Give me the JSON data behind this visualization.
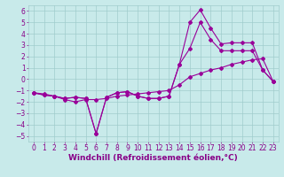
{
  "x": [
    0,
    1,
    2,
    3,
    4,
    5,
    6,
    7,
    8,
    9,
    10,
    11,
    12,
    13,
    14,
    15,
    16,
    17,
    18,
    19,
    20,
    21,
    22,
    23
  ],
  "line1": [
    -1.2,
    -1.4,
    -1.5,
    -1.7,
    -1.6,
    -1.7,
    -4.8,
    -1.6,
    -1.2,
    -1.1,
    -1.5,
    -1.7,
    -1.7,
    -1.5,
    1.3,
    5.0,
    6.1,
    4.5,
    3.1,
    3.2,
    3.2,
    3.2,
    0.8,
    -0.2
  ],
  "line2": [
    -1.2,
    -1.4,
    -1.5,
    -1.7,
    -1.6,
    -1.7,
    -4.8,
    -1.6,
    -1.2,
    -1.1,
    -1.5,
    -1.7,
    -1.7,
    -1.5,
    1.3,
    2.7,
    5.0,
    3.5,
    2.5,
    2.5,
    2.5,
    2.5,
    0.8,
    -0.2
  ],
  "line3": [
    -1.2,
    -1.3,
    -1.5,
    -1.8,
    -2.0,
    -1.8,
    -1.8,
    -1.7,
    -1.5,
    -1.4,
    -1.3,
    -1.2,
    -1.1,
    -1.0,
    -0.5,
    0.2,
    0.5,
    0.8,
    1.0,
    1.3,
    1.5,
    1.7,
    1.8,
    -0.2
  ],
  "color": "#990099",
  "bg_color": "#c8eaea",
  "grid_color": "#a0cccc",
  "xlabel": "Windchill (Refroidissement éolien,°C)",
  "ylim": [
    -5.5,
    6.5
  ],
  "xlim": [
    -0.5,
    23.5
  ],
  "yticks": [
    -5,
    -4,
    -3,
    -2,
    -1,
    0,
    1,
    2,
    3,
    4,
    5,
    6
  ],
  "xticks": [
    0,
    1,
    2,
    3,
    4,
    5,
    6,
    7,
    8,
    9,
    10,
    11,
    12,
    13,
    14,
    15,
    16,
    17,
    18,
    19,
    20,
    21,
    22,
    23
  ],
  "font_color": "#880088",
  "font_size": 5.5,
  "xlabel_fontsize": 6.5,
  "marker": "D",
  "markersize": 2.0,
  "linewidth": 0.8
}
